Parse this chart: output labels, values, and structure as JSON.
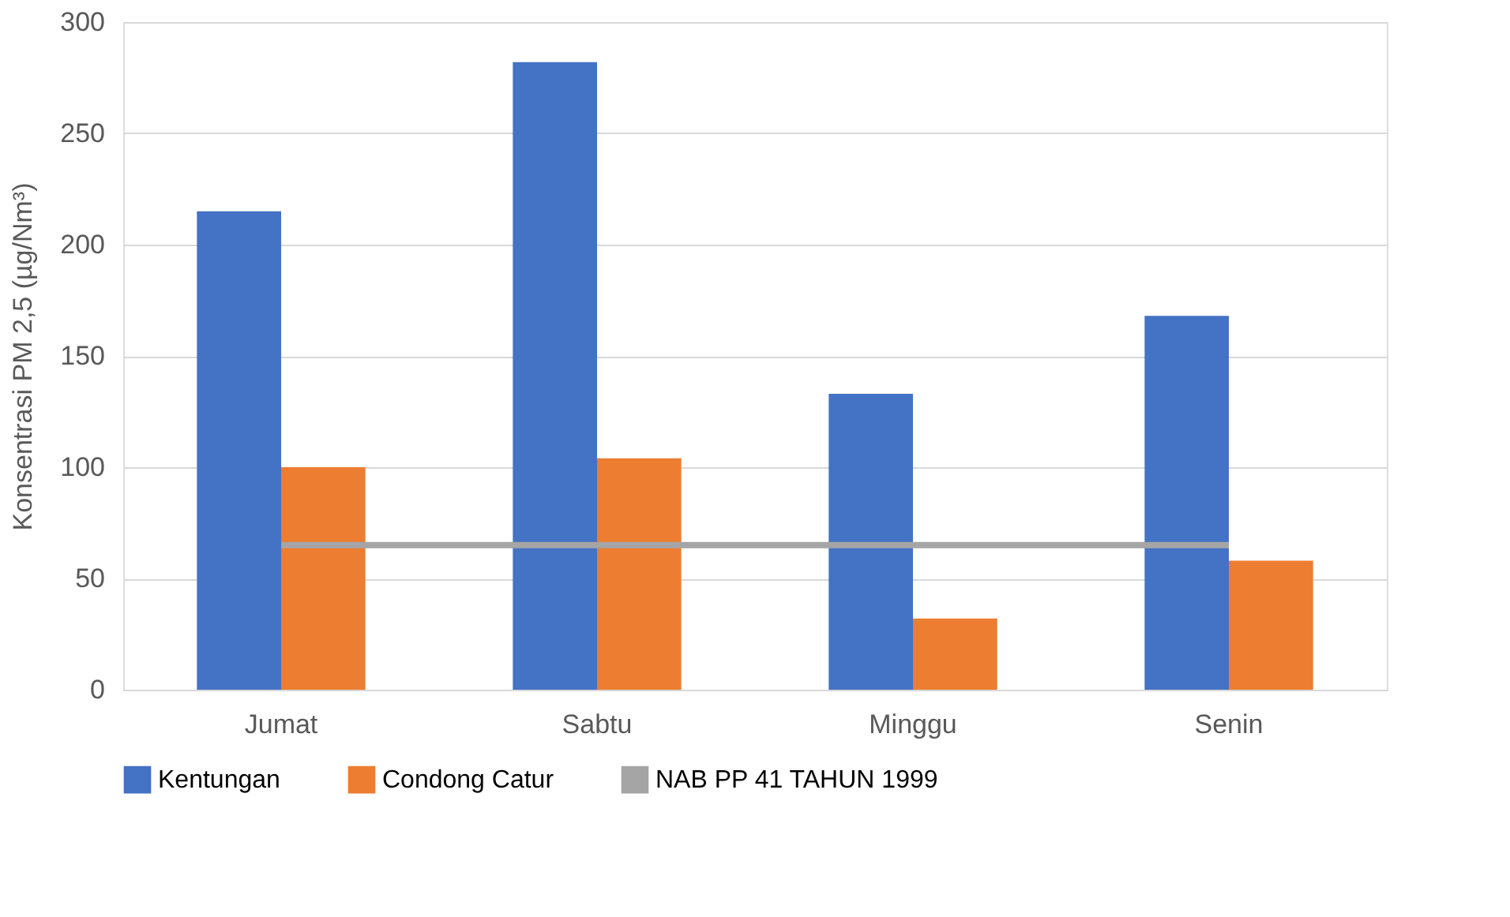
{
  "chart_data": {
    "type": "bar",
    "ylabel": "Konsentrasi PM 2,5 (µg/Nm³)",
    "categories": [
      "Jumat",
      "Sabtu",
      "Minggu",
      "Senin"
    ],
    "series": [
      {
        "name": "Kentungan",
        "color": "#4472c4",
        "values": [
          215,
          282,
          133,
          168
        ]
      },
      {
        "name": "Condong Catur",
        "color": "#ed7d31",
        "values": [
          100,
          104,
          32,
          58
        ]
      },
      {
        "name": "NAB PP 41 TAHUN 1999",
        "color": "#a5a5a5",
        "type": "line",
        "values": [
          65,
          65,
          65,
          65
        ]
      }
    ],
    "ylim": [
      0,
      300
    ],
    "yticks": [
      0,
      50,
      100,
      150,
      200,
      250,
      300
    ],
    "grid": "y",
    "legend": "bottom"
  }
}
